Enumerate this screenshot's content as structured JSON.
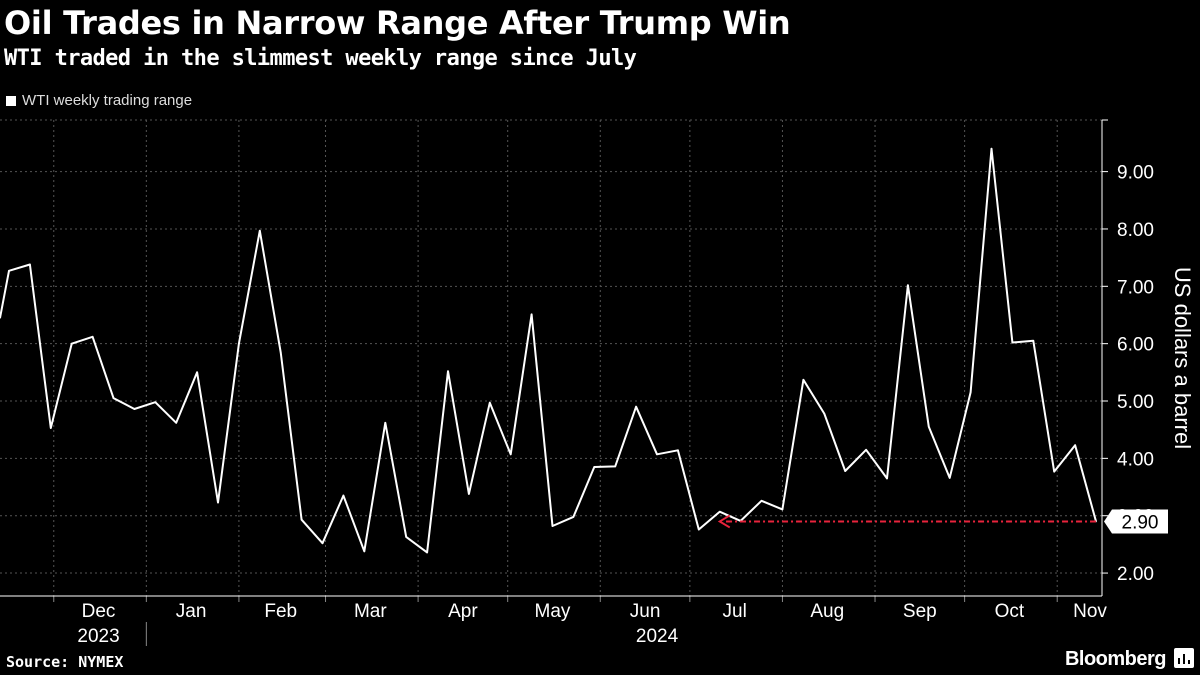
{
  "header": {
    "title": "Oil Trades in Narrow Range After Trump Win",
    "subtitle": "WTI traded in the slimmest weekly range since July"
  },
  "legend": {
    "label": "WTI weekly trading range",
    "color": "#ffffff"
  },
  "footer": {
    "source": "Source: NYMEX",
    "brand": "Bloomberg",
    "brand_icon": "bloomberg-chart-icon"
  },
  "colors": {
    "background": "#000000",
    "line": "#ffffff",
    "annotation": "#e8233c",
    "grid": "#555555"
  },
  "chart_data": {
    "type": "line",
    "title": "Oil Trades in Narrow Range After Trump Win",
    "subtitle": "WTI traded in the slimmest weekly range since July",
    "ylabel": "US dollars a barrel",
    "ylim": [
      1.6,
      9.9
    ],
    "yticks": [
      "2.00",
      "3.00",
      "4.00",
      "5.00",
      "6.00",
      "7.00",
      "8.00",
      "9.00"
    ],
    "ytick_values": [
      2,
      3,
      4,
      5,
      6,
      7,
      8,
      9
    ],
    "xlim": [
      "2023-11-13",
      "2024-11-16"
    ],
    "month_labels": [
      {
        "label": "Dec",
        "date": "2023-12-16"
      },
      {
        "label": "Jan",
        "date": "2024-01-16"
      },
      {
        "label": "Feb",
        "date": "2024-02-15"
      },
      {
        "label": "Mar",
        "date": "2024-03-16"
      },
      {
        "label": "Apr",
        "date": "2024-04-16"
      },
      {
        "label": "May",
        "date": "2024-05-16"
      },
      {
        "label": "Jun",
        "date": "2024-06-16"
      },
      {
        "label": "Jul",
        "date": "2024-07-16"
      },
      {
        "label": "Aug",
        "date": "2024-08-16"
      },
      {
        "label": "Sep",
        "date": "2024-09-16"
      },
      {
        "label": "Oct",
        "date": "2024-10-16"
      },
      {
        "label": "Nov",
        "date": "2024-11-12"
      }
    ],
    "month_ticks": [
      "2023-12-01",
      "2024-01-01",
      "2024-02-01",
      "2024-03-01",
      "2024-04-01",
      "2024-05-01",
      "2024-06-01",
      "2024-07-01",
      "2024-08-01",
      "2024-09-01",
      "2024-10-01",
      "2024-11-01"
    ],
    "year_labels": [
      {
        "label": "2023",
        "date": "2023-12-16"
      },
      {
        "label": "2024",
        "date": "2024-06-20"
      }
    ],
    "year_divider": "2024-01-01",
    "grid": true,
    "legend_position": "top-left",
    "series": [
      {
        "name": "WTI weekly trading range",
        "x": [
          "2023-11-13",
          "2023-11-16",
          "2023-11-23",
          "2023-11-30",
          "2023-12-07",
          "2023-12-14",
          "2023-12-21",
          "2023-12-28",
          "2024-01-04",
          "2024-01-11",
          "2024-01-18",
          "2024-01-25",
          "2024-02-01",
          "2024-02-08",
          "2024-02-15",
          "2024-02-22",
          "2024-02-29",
          "2024-03-07",
          "2024-03-14",
          "2024-03-21",
          "2024-03-28",
          "2024-04-04",
          "2024-04-11",
          "2024-04-18",
          "2024-04-25",
          "2024-05-02",
          "2024-05-09",
          "2024-05-16",
          "2024-05-23",
          "2024-05-30",
          "2024-06-06",
          "2024-06-13",
          "2024-06-20",
          "2024-06-27",
          "2024-07-04",
          "2024-07-11",
          "2024-07-18",
          "2024-07-25",
          "2024-08-01",
          "2024-08-08",
          "2024-08-15",
          "2024-08-22",
          "2024-08-29",
          "2024-09-05",
          "2024-09-12",
          "2024-09-19",
          "2024-09-26",
          "2024-10-03",
          "2024-10-10",
          "2024-10-17",
          "2024-10-24",
          "2024-10-31",
          "2024-11-07",
          "2024-11-14"
        ],
        "y": [
          6.45,
          7.27,
          7.38,
          4.53,
          6.0,
          6.12,
          5.05,
          4.86,
          4.98,
          4.62,
          5.5,
          3.23,
          6.0,
          7.97,
          5.85,
          2.93,
          2.52,
          3.35,
          2.38,
          4.62,
          2.63,
          2.36,
          5.52,
          3.38,
          4.97,
          4.07,
          6.51,
          2.82,
          2.98,
          3.85,
          3.86,
          4.9,
          4.07,
          4.14,
          2.76,
          3.07,
          2.91,
          3.26,
          3.11,
          5.37,
          4.78,
          3.78,
          4.15,
          3.65,
          7.02,
          4.55,
          3.66,
          5.15,
          9.4,
          6.02,
          6.05,
          3.77,
          4.23,
          2.9
        ]
      }
    ],
    "annotations": [
      {
        "type": "last-value-label",
        "text": "2.90",
        "value": 2.9
      },
      {
        "type": "reference-arrow",
        "from": "2024-11-14",
        "to": "2024-07-11",
        "value": 2.9
      }
    ]
  }
}
